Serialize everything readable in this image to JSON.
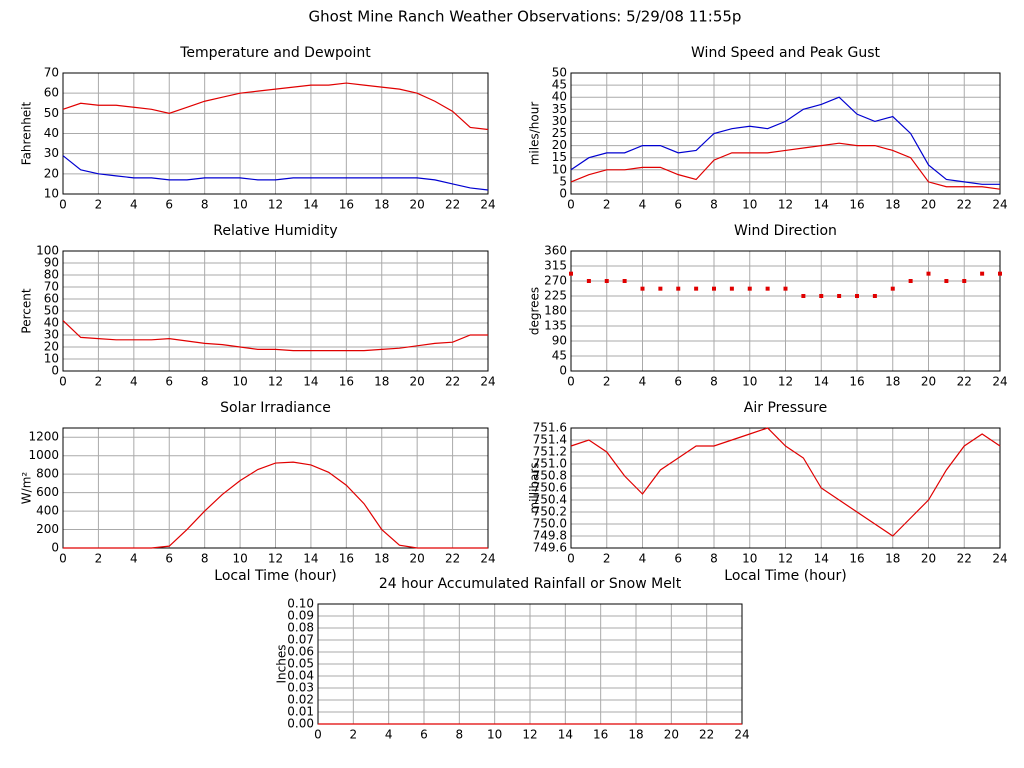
{
  "title": "Ghost Mine Ranch Weather Observations: 5/29/08 11:55p",
  "chart_data": [
    {
      "type": "line",
      "title": "Temperature and Dewpoint",
      "ylabel": "Fahrenheit",
      "x": [
        0,
        1,
        2,
        3,
        4,
        5,
        6,
        7,
        8,
        9,
        10,
        11,
        12,
        13,
        14,
        15,
        16,
        17,
        18,
        19,
        20,
        21,
        22,
        23,
        24
      ],
      "series": [
        {
          "color": "#e00000",
          "values": [
            52,
            55,
            54,
            54,
            53,
            52,
            50,
            53,
            56,
            58,
            60,
            61,
            62,
            63,
            64,
            64,
            65,
            64,
            63,
            62,
            60,
            56,
            51,
            43,
            42
          ]
        },
        {
          "color": "#0000d0",
          "values": [
            29,
            22,
            20,
            19,
            18,
            18,
            17,
            17,
            18,
            18,
            18,
            17,
            17,
            18,
            18,
            18,
            18,
            18,
            18,
            18,
            18,
            17,
            15,
            13,
            12
          ]
        }
      ],
      "xlim": [
        0,
        24
      ],
      "xticks": [
        0,
        2,
        4,
        6,
        8,
        10,
        12,
        14,
        16,
        18,
        20,
        22,
        24
      ],
      "ylim": [
        10,
        70
      ],
      "yticks": [
        10,
        20,
        30,
        40,
        50,
        60,
        70
      ],
      "grid": true
    },
    {
      "type": "line",
      "title": "Wind Speed and Peak Gust",
      "ylabel": "miles/hour",
      "x": [
        0,
        1,
        2,
        3,
        4,
        5,
        6,
        7,
        8,
        9,
        10,
        11,
        12,
        13,
        14,
        15,
        16,
        17,
        18,
        19,
        20,
        21,
        22,
        23,
        24
      ],
      "series": [
        {
          "color": "#0000d0",
          "values": [
            10,
            15,
            17,
            17,
            20,
            20,
            17,
            18,
            25,
            27,
            28,
            27,
            30,
            35,
            37,
            40,
            33,
            30,
            32,
            25,
            12,
            6,
            5,
            4,
            4
          ]
        },
        {
          "color": "#e00000",
          "values": [
            5,
            8,
            10,
            10,
            11,
            11,
            8,
            6,
            14,
            17,
            17,
            17,
            18,
            19,
            20,
            21,
            20,
            20,
            18,
            15,
            5,
            3,
            3,
            3,
            2
          ]
        }
      ],
      "xlim": [
        0,
        24
      ],
      "xticks": [
        0,
        2,
        4,
        6,
        8,
        10,
        12,
        14,
        16,
        18,
        20,
        22,
        24
      ],
      "ylim": [
        0,
        50
      ],
      "yticks": [
        0,
        5,
        10,
        15,
        20,
        25,
        30,
        35,
        40,
        45,
        50
      ],
      "grid": true
    },
    {
      "type": "line",
      "title": "Relative Humidity",
      "ylabel": "Percent",
      "x": [
        0,
        1,
        2,
        3,
        4,
        5,
        6,
        7,
        8,
        9,
        10,
        11,
        12,
        13,
        14,
        15,
        16,
        17,
        18,
        19,
        20,
        21,
        22,
        23,
        24
      ],
      "series": [
        {
          "color": "#e00000",
          "values": [
            42,
            28,
            27,
            26,
            26,
            26,
            27,
            25,
            23,
            22,
            20,
            18,
            18,
            17,
            17,
            17,
            17,
            17,
            18,
            19,
            21,
            23,
            24,
            30,
            30
          ]
        }
      ],
      "xlim": [
        0,
        24
      ],
      "xticks": [
        0,
        2,
        4,
        6,
        8,
        10,
        12,
        14,
        16,
        18,
        20,
        22,
        24
      ],
      "ylim": [
        0,
        100
      ],
      "yticks": [
        0,
        10,
        20,
        30,
        40,
        50,
        60,
        70,
        80,
        90,
        100
      ],
      "grid": true
    },
    {
      "type": "scatter",
      "title": "Wind Direction",
      "ylabel": "degrees",
      "x": [
        0,
        1,
        2,
        3,
        4,
        5,
        6,
        7,
        8,
        9,
        10,
        11,
        12,
        13,
        14,
        15,
        16,
        17,
        18,
        19,
        20,
        21,
        22,
        23,
        24
      ],
      "series": [
        {
          "color": "#e00000",
          "values": [
            292,
            270,
            270,
            270,
            247,
            247,
            247,
            247,
            247,
            247,
            247,
            247,
            247,
            225,
            225,
            225,
            225,
            225,
            247,
            270,
            292,
            270,
            270,
            292,
            292
          ]
        }
      ],
      "xlim": [
        0,
        24
      ],
      "xticks": [
        0,
        2,
        4,
        6,
        8,
        10,
        12,
        14,
        16,
        18,
        20,
        22,
        24
      ],
      "ylim": [
        0,
        360
      ],
      "yticks": [
        0,
        45,
        90,
        135,
        180,
        225,
        270,
        315,
        360
      ],
      "grid": true
    },
    {
      "type": "line",
      "title": "Solar Irradiance",
      "ylabel": "W/m²",
      "xlabel": "Local Time (hour)",
      "x": [
        0,
        1,
        2,
        3,
        4,
        5,
        6,
        7,
        8,
        9,
        10,
        11,
        12,
        13,
        14,
        15,
        16,
        17,
        18,
        19,
        20,
        21,
        22,
        23,
        24
      ],
      "series": [
        {
          "color": "#e00000",
          "values": [
            0,
            0,
            0,
            0,
            0,
            0,
            20,
            200,
            400,
            580,
            730,
            850,
            920,
            930,
            900,
            820,
            680,
            480,
            200,
            30,
            0,
            0,
            0,
            0,
            0
          ]
        }
      ],
      "xlim": [
        0,
        24
      ],
      "xticks": [
        0,
        2,
        4,
        6,
        8,
        10,
        12,
        14,
        16,
        18,
        20,
        22,
        24
      ],
      "ylim": [
        0,
        1300
      ],
      "yticks": [
        0,
        200,
        400,
        600,
        800,
        1000,
        1200
      ],
      "grid": true
    },
    {
      "type": "line",
      "title": "Air Pressure",
      "ylabel": "millibars",
      "xlabel": "Local Time (hour)",
      "x": [
        0,
        1,
        2,
        3,
        4,
        5,
        6,
        7,
        8,
        9,
        10,
        11,
        12,
        13,
        14,
        15,
        16,
        17,
        18,
        19,
        20,
        21,
        22,
        23,
        24
      ],
      "series": [
        {
          "color": "#e00000",
          "values": [
            751.3,
            751.4,
            751.2,
            750.8,
            750.5,
            750.9,
            751.1,
            751.3,
            751.3,
            751.4,
            751.5,
            751.6,
            751.3,
            751.1,
            750.6,
            750.4,
            750.2,
            750.0,
            749.8,
            750.1,
            750.4,
            750.9,
            751.3,
            751.5,
            751.3
          ]
        }
      ],
      "xlim": [
        0,
        24
      ],
      "xticks": [
        0,
        2,
        4,
        6,
        8,
        10,
        12,
        14,
        16,
        18,
        20,
        22,
        24
      ],
      "ylim": [
        749.6,
        751.6
      ],
      "yticks": [
        749.6,
        749.8,
        {
          "value": 750,
          "label": "750.0"
        },
        750.2,
        750.4,
        750.6,
        750.8,
        {
          "value": 751,
          "label": "751.0"
        },
        751.2,
        751.4,
        751.6
      ],
      "grid": true
    },
    {
      "type": "line",
      "title": "24 hour Accumulated Rainfall or Snow Melt",
      "ylabel": "Inches",
      "x": [
        0,
        1,
        2,
        3,
        4,
        5,
        6,
        7,
        8,
        9,
        10,
        11,
        12,
        13,
        14,
        15,
        16,
        17,
        18,
        19,
        20,
        21,
        22,
        23,
        24
      ],
      "series": [
        {
          "color": "#e00000",
          "values": [
            0,
            0,
            0,
            0,
            0,
            0,
            0,
            0,
            0,
            0,
            0,
            0,
            0,
            0,
            0,
            0,
            0,
            0,
            0,
            0,
            0,
            0,
            0,
            0,
            0
          ]
        }
      ],
      "xlim": [
        0,
        24
      ],
      "xticks": [
        0,
        2,
        4,
        6,
        8,
        10,
        12,
        14,
        16,
        18,
        20,
        22,
        24
      ],
      "ylim": [
        0,
        0.1
      ],
      "yticks": [
        {
          "value": 0,
          "label": "0.00"
        },
        0.01,
        0.02,
        0.03,
        0.04,
        0.05,
        0.06,
        0.07,
        0.08,
        0.09,
        {
          "value": 0.1,
          "label": "0.10"
        }
      ],
      "grid": true
    }
  ]
}
